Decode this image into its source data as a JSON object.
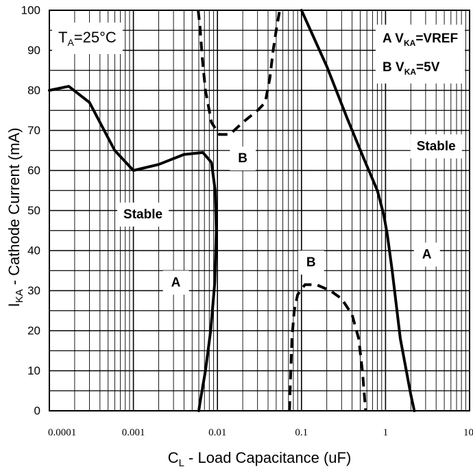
{
  "chart_data": {
    "type": "line",
    "x_scale": "log",
    "xlim": [
      0.0001,
      10
    ],
    "ylim": [
      0,
      100
    ],
    "grid": true,
    "x_ticks": [
      "0.0001",
      "0.001",
      "0.01",
      "0.1",
      "1",
      "10"
    ],
    "y_ticks": [
      "0",
      "10",
      "20",
      "30",
      "40",
      "50",
      "60",
      "70",
      "80",
      "90",
      "100"
    ],
    "xlabel": {
      "main": "C",
      "sub": "L",
      "rest": " - Load Capacitance (uF)"
    },
    "ylabel": {
      "main": "I",
      "sub": "KA",
      "rest": " - Cathode Current (mA)"
    },
    "temperature": {
      "main": "T",
      "sub": "A",
      "rest": "=25°C"
    },
    "legend": [
      {
        "prefix": "A V",
        "sub": "KA",
        "suffix": "=VREF"
      },
      {
        "prefix": "B V",
        "sub": "KA",
        "suffix": "=5V"
      }
    ],
    "series": [
      {
        "label": "A",
        "style": "solid",
        "x": [
          0.0001,
          0.00017,
          0.0003,
          0.0006,
          0.001,
          0.002,
          0.004,
          0.0067,
          0.0085,
          0.0094,
          0.0097,
          0.0093,
          0.0083,
          0.0072,
          0.0062,
          0.006
        ],
        "y": [
          80,
          81,
          77,
          65,
          60,
          61.5,
          64,
          64.5,
          62,
          55,
          45,
          32,
          20,
          10,
          2,
          0
        ]
      },
      {
        "label": "B",
        "style": "dashed",
        "x": [
          0.0059,
          0.0062,
          0.0066,
          0.0072,
          0.0085,
          0.0105,
          0.014,
          0.02,
          0.03,
          0.037,
          0.042,
          0.046,
          0.05,
          0.055
        ],
        "y": [
          100,
          96,
          88,
          80,
          72,
          69,
          69,
          72,
          75,
          77,
          83,
          90,
          95,
          100
        ]
      },
      {
        "label": "A",
        "style": "solid",
        "x": [
          0.1,
          0.2,
          0.35,
          0.55,
          0.8,
          0.95,
          1.05,
          1.2,
          1.5,
          2.0,
          2.2
        ],
        "y": [
          100,
          86,
          73,
          63,
          55,
          49,
          44,
          35,
          18,
          4,
          0
        ]
      },
      {
        "label": "B",
        "style": "dashed",
        "x": [
          0.072,
          0.074,
          0.077,
          0.082,
          0.09,
          0.11,
          0.15,
          0.22,
          0.3,
          0.4,
          0.48,
          0.53,
          0.56,
          0.58
        ],
        "y": [
          0,
          8,
          18,
          25,
          29,
          31.5,
          31.5,
          30,
          28,
          24,
          18,
          10,
          4,
          0
        ]
      }
    ],
    "annotations": [
      {
        "text": "Stable",
        "x": 0.0013,
        "y": 49
      },
      {
        "text": "Stable",
        "x": 4.0,
        "y": 66
      },
      {
        "text": "A",
        "x": 0.0032,
        "y": 32
      },
      {
        "text": "A",
        "x": 3.1,
        "y": 39
      },
      {
        "text": "B",
        "x": 0.02,
        "y": 63
      },
      {
        "text": "B",
        "x": 0.13,
        "y": 37
      }
    ]
  }
}
